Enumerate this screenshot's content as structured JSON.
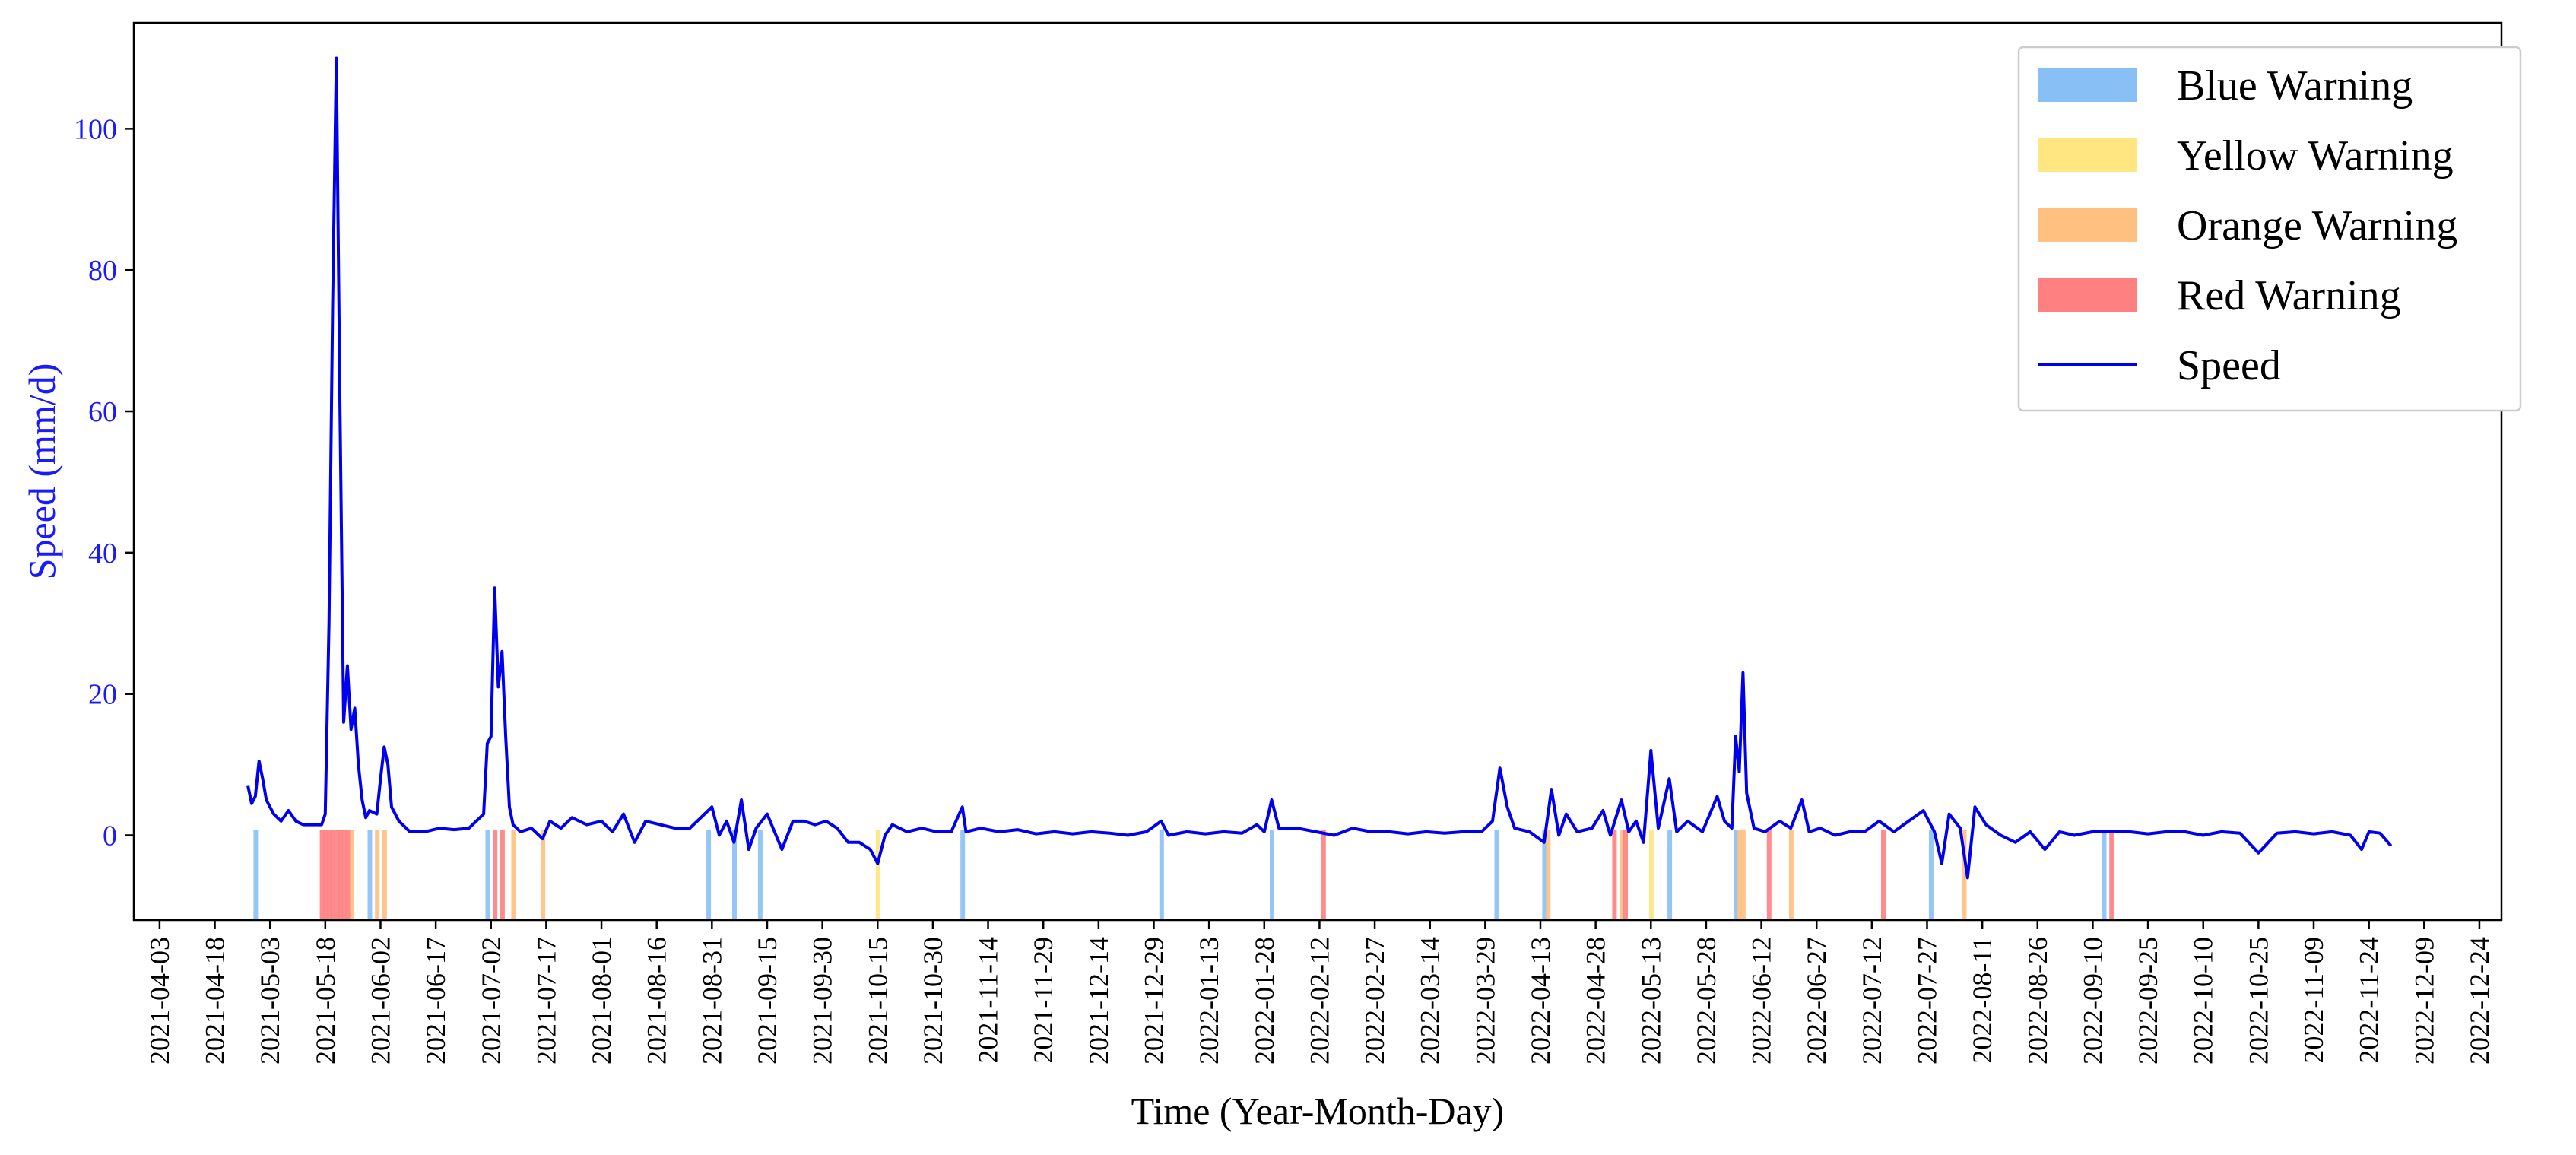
{
  "chart_data": {
    "type": "line",
    "title": "",
    "xlabel": "Time (Year-Month-Day)",
    "ylabel": "Speed (mm/d)",
    "ylim": [
      -12,
      115
    ],
    "yticks": [
      0,
      20,
      40,
      60,
      80,
      100
    ],
    "xlim": [
      "2021-03-27",
      "2022-12-30"
    ],
    "xtick_labels": [
      "2021-04-03",
      "2021-04-18",
      "2021-05-03",
      "2021-05-18",
      "2021-06-02",
      "2021-06-17",
      "2021-07-02",
      "2021-07-17",
      "2021-08-01",
      "2021-08-16",
      "2021-08-31",
      "2021-09-15",
      "2021-09-30",
      "2021-10-15",
      "2021-10-30",
      "2021-11-14",
      "2021-11-29",
      "2021-12-14",
      "2021-12-29",
      "2022-01-13",
      "2022-01-28",
      "2022-02-12",
      "2022-02-27",
      "2022-03-14",
      "2022-03-29",
      "2022-04-13",
      "2022-04-28",
      "2022-05-13",
      "2022-05-28",
      "2022-06-12",
      "2022-06-27",
      "2022-07-12",
      "2022-07-27",
      "2022-08-11",
      "2022-08-26",
      "2022-09-10",
      "2022-09-25",
      "2022-10-10",
      "2022-10-25",
      "2022-11-09",
      "2022-11-24",
      "2022-12-09",
      "2022-12-24"
    ],
    "grid": false,
    "legend": "top-right",
    "colors": {
      "speed": "#0000ee",
      "blue_warning": "#88c0f5",
      "yellow_warning": "#ffe680",
      "orange_warning": "#ffc080",
      "red_warning": "#ff8080",
      "axis_label": "#1a1aff"
    },
    "series": [
      {
        "name": "Speed",
        "points": [
          [
            "2021-04-27",
            7
          ],
          [
            "2021-04-28",
            4.5
          ],
          [
            "2021-04-29",
            5.5
          ],
          [
            "2021-04-30",
            10.5
          ],
          [
            "2021-05-01",
            8
          ],
          [
            "2021-05-02",
            5
          ],
          [
            "2021-05-04",
            3
          ],
          [
            "2021-05-06",
            2
          ],
          [
            "2021-05-08",
            3.5
          ],
          [
            "2021-05-10",
            2
          ],
          [
            "2021-05-12",
            1.5
          ],
          [
            "2021-05-15",
            1.5
          ],
          [
            "2021-05-17",
            1.5
          ],
          [
            "2021-05-18",
            3
          ],
          [
            "2021-05-19",
            30
          ],
          [
            "2021-05-20",
            75
          ],
          [
            "2021-05-21",
            110
          ],
          [
            "2021-05-22",
            60
          ],
          [
            "2021-05-23",
            16
          ],
          [
            "2021-05-24",
            24
          ],
          [
            "2021-05-25",
            15
          ],
          [
            "2021-05-26",
            18
          ],
          [
            "2021-05-27",
            10
          ],
          [
            "2021-05-28",
            5
          ],
          [
            "2021-05-29",
            2.5
          ],
          [
            "2021-05-30",
            3.5
          ],
          [
            "2021-06-01",
            3
          ],
          [
            "2021-06-02",
            8
          ],
          [
            "2021-06-03",
            12.5
          ],
          [
            "2021-06-04",
            10
          ],
          [
            "2021-06-05",
            4
          ],
          [
            "2021-06-07",
            2
          ],
          [
            "2021-06-10",
            0.5
          ],
          [
            "2021-06-14",
            0.5
          ],
          [
            "2021-06-18",
            1
          ],
          [
            "2021-06-22",
            0.8
          ],
          [
            "2021-06-26",
            1
          ],
          [
            "2021-06-30",
            3
          ],
          [
            "2021-07-01",
            13
          ],
          [
            "2021-07-02",
            14
          ],
          [
            "2021-07-03",
            35
          ],
          [
            "2021-07-04",
            21
          ],
          [
            "2021-07-05",
            26
          ],
          [
            "2021-07-06",
            14
          ],
          [
            "2021-07-07",
            4
          ],
          [
            "2021-07-08",
            1.5
          ],
          [
            "2021-07-10",
            0.5
          ],
          [
            "2021-07-13",
            1
          ],
          [
            "2021-07-16",
            -0.5
          ],
          [
            "2021-07-18",
            2
          ],
          [
            "2021-07-21",
            1
          ],
          [
            "2021-07-24",
            2.5
          ],
          [
            "2021-07-28",
            1.5
          ],
          [
            "2021-08-01",
            2
          ],
          [
            "2021-08-04",
            0.5
          ],
          [
            "2021-08-07",
            3
          ],
          [
            "2021-08-10",
            -1
          ],
          [
            "2021-08-13",
            2
          ],
          [
            "2021-08-17",
            1.5
          ],
          [
            "2021-08-21",
            1
          ],
          [
            "2021-08-25",
            1
          ],
          [
            "2021-08-28",
            2.5
          ],
          [
            "2021-08-31",
            4
          ],
          [
            "2021-09-02",
            0
          ],
          [
            "2021-09-04",
            2
          ],
          [
            "2021-09-06",
            -1
          ],
          [
            "2021-09-08",
            5
          ],
          [
            "2021-09-10",
            -2
          ],
          [
            "2021-09-12",
            1
          ],
          [
            "2021-09-15",
            3
          ],
          [
            "2021-09-17",
            0.5
          ],
          [
            "2021-09-19",
            -2
          ],
          [
            "2021-09-22",
            2
          ],
          [
            "2021-09-25",
            2
          ],
          [
            "2021-09-28",
            1.5
          ],
          [
            "2021-10-01",
            2
          ],
          [
            "2021-10-04",
            1
          ],
          [
            "2021-10-07",
            -1
          ],
          [
            "2021-10-10",
            -1
          ],
          [
            "2021-10-13",
            -2
          ],
          [
            "2021-10-15",
            -4
          ],
          [
            "2021-10-17",
            0
          ],
          [
            "2021-10-19",
            1.5
          ],
          [
            "2021-10-23",
            0.5
          ],
          [
            "2021-10-27",
            1
          ],
          [
            "2021-10-31",
            0.5
          ],
          [
            "2021-11-04",
            0.5
          ],
          [
            "2021-11-07",
            4
          ],
          [
            "2021-11-08",
            0.5
          ],
          [
            "2021-11-12",
            1
          ],
          [
            "2021-11-17",
            0.5
          ],
          [
            "2021-11-22",
            0.8
          ],
          [
            "2021-11-27",
            0.2
          ],
          [
            "2021-12-02",
            0.5
          ],
          [
            "2021-12-07",
            0.2
          ],
          [
            "2021-12-12",
            0.5
          ],
          [
            "2021-12-17",
            0.3
          ],
          [
            "2021-12-22",
            0
          ],
          [
            "2021-12-27",
            0.5
          ],
          [
            "2021-12-31",
            2
          ],
          [
            "2022-01-02",
            0
          ],
          [
            "2022-01-07",
            0.5
          ],
          [
            "2022-01-12",
            0.2
          ],
          [
            "2022-01-17",
            0.5
          ],
          [
            "2022-01-22",
            0.3
          ],
          [
            "2022-01-26",
            1.5
          ],
          [
            "2022-01-28",
            0.5
          ],
          [
            "2022-01-30",
            5
          ],
          [
            "2022-02-01",
            1
          ],
          [
            "2022-02-06",
            1
          ],
          [
            "2022-02-11",
            0.5
          ],
          [
            "2022-02-16",
            0
          ],
          [
            "2022-02-21",
            1
          ],
          [
            "2022-02-26",
            0.5
          ],
          [
            "2022-03-03",
            0.5
          ],
          [
            "2022-03-08",
            0.2
          ],
          [
            "2022-03-13",
            0.5
          ],
          [
            "2022-03-18",
            0.3
          ],
          [
            "2022-03-23",
            0.5
          ],
          [
            "2022-03-28",
            0.5
          ],
          [
            "2022-03-31",
            2
          ],
          [
            "2022-04-02",
            9.5
          ],
          [
            "2022-04-04",
            4
          ],
          [
            "2022-04-06",
            1
          ],
          [
            "2022-04-10",
            0.5
          ],
          [
            "2022-04-14",
            -1
          ],
          [
            "2022-04-16",
            6.5
          ],
          [
            "2022-04-18",
            0
          ],
          [
            "2022-04-20",
            3
          ],
          [
            "2022-04-23",
            0.5
          ],
          [
            "2022-04-27",
            1
          ],
          [
            "2022-04-30",
            3.5
          ],
          [
            "2022-05-02",
            0
          ],
          [
            "2022-05-05",
            5
          ],
          [
            "2022-05-07",
            0.5
          ],
          [
            "2022-05-09",
            2
          ],
          [
            "2022-05-11",
            -1
          ],
          [
            "2022-05-13",
            12
          ],
          [
            "2022-05-15",
            1
          ],
          [
            "2022-05-18",
            8
          ],
          [
            "2022-05-20",
            0.5
          ],
          [
            "2022-05-23",
            2
          ],
          [
            "2022-05-27",
            0.5
          ],
          [
            "2022-05-31",
            5.5
          ],
          [
            "2022-06-02",
            2
          ],
          [
            "2022-06-04",
            1
          ],
          [
            "2022-06-05",
            14
          ],
          [
            "2022-06-06",
            9
          ],
          [
            "2022-06-07",
            23
          ],
          [
            "2022-06-08",
            6
          ],
          [
            "2022-06-10",
            1
          ],
          [
            "2022-06-13",
            0.5
          ],
          [
            "2022-06-17",
            2
          ],
          [
            "2022-06-20",
            1
          ],
          [
            "2022-06-23",
            5
          ],
          [
            "2022-06-25",
            0.5
          ],
          [
            "2022-06-28",
            1
          ],
          [
            "2022-07-02",
            0
          ],
          [
            "2022-07-06",
            0.5
          ],
          [
            "2022-07-10",
            0.5
          ],
          [
            "2022-07-14",
            2
          ],
          [
            "2022-07-18",
            0.5
          ],
          [
            "2022-07-22",
            2
          ],
          [
            "2022-07-26",
            3.5
          ],
          [
            "2022-07-29",
            0.5
          ],
          [
            "2022-07-31",
            -4
          ],
          [
            "2022-08-02",
            3
          ],
          [
            "2022-08-05",
            1
          ],
          [
            "2022-08-07",
            -6
          ],
          [
            "2022-08-09",
            4
          ],
          [
            "2022-08-12",
            1.5
          ],
          [
            "2022-08-16",
            0
          ],
          [
            "2022-08-20",
            -1
          ],
          [
            "2022-08-24",
            0.5
          ],
          [
            "2022-08-28",
            -2
          ],
          [
            "2022-09-01",
            0.5
          ],
          [
            "2022-09-05",
            0
          ],
          [
            "2022-09-10",
            0.5
          ],
          [
            "2022-09-15",
            0.5
          ],
          [
            "2022-09-20",
            0.5
          ],
          [
            "2022-09-25",
            0.2
          ],
          [
            "2022-09-30",
            0.5
          ],
          [
            "2022-10-05",
            0.5
          ],
          [
            "2022-10-10",
            0
          ],
          [
            "2022-10-15",
            0.5
          ],
          [
            "2022-10-20",
            0.3
          ],
          [
            "2022-10-25",
            -2.5
          ],
          [
            "2022-10-30",
            0.3
          ],
          [
            "2022-11-04",
            0.5
          ],
          [
            "2022-11-09",
            0.2
          ],
          [
            "2022-11-14",
            0.5
          ],
          [
            "2022-11-19",
            0
          ],
          [
            "2022-11-22",
            -2
          ],
          [
            "2022-11-24",
            0.5
          ],
          [
            "2022-11-27",
            0.3
          ],
          [
            "2022-11-30",
            -1.5
          ]
        ]
      }
    ],
    "warnings": [
      {
        "level": "blue",
        "dates": [
          "2021-04-29",
          "2021-05-30",
          "2021-07-01",
          "2021-08-30",
          "2021-09-06",
          "2021-09-13",
          "2021-11-07",
          "2021-12-31",
          "2022-01-30",
          "2022-04-01",
          "2022-04-14",
          "2022-05-18",
          "2022-06-05",
          "2022-07-28",
          "2022-09-13"
        ]
      },
      {
        "level": "yellow",
        "dates": [
          "2021-10-15",
          "2022-05-13"
        ]
      },
      {
        "level": "orange",
        "dates": [
          "2021-05-25",
          "2021-06-01",
          "2021-06-03",
          "2021-07-08",
          "2021-07-16",
          "2022-04-15",
          "2022-05-05",
          "2022-06-06",
          "2022-06-07",
          "2022-06-20",
          "2022-08-06"
        ]
      },
      {
        "level": "red",
        "dates": [
          "2021-05-17",
          "2021-05-18",
          "2021-05-19",
          "2021-05-20",
          "2021-05-21",
          "2021-05-22",
          "2021-05-23",
          "2021-05-24",
          "2021-07-03",
          "2021-07-05",
          "2022-02-13",
          "2022-05-03",
          "2022-05-06",
          "2022-06-14",
          "2022-07-15",
          "2022-09-15"
        ]
      }
    ],
    "legend_entries": [
      {
        "label": "Blue Warning",
        "swatch": "blue"
      },
      {
        "label": "Yellow Warning",
        "swatch": "yellow"
      },
      {
        "label": "Orange Warning",
        "swatch": "orange"
      },
      {
        "label": "Red Warning",
        "swatch": "red"
      },
      {
        "label": "Speed",
        "swatch": "line"
      }
    ]
  }
}
